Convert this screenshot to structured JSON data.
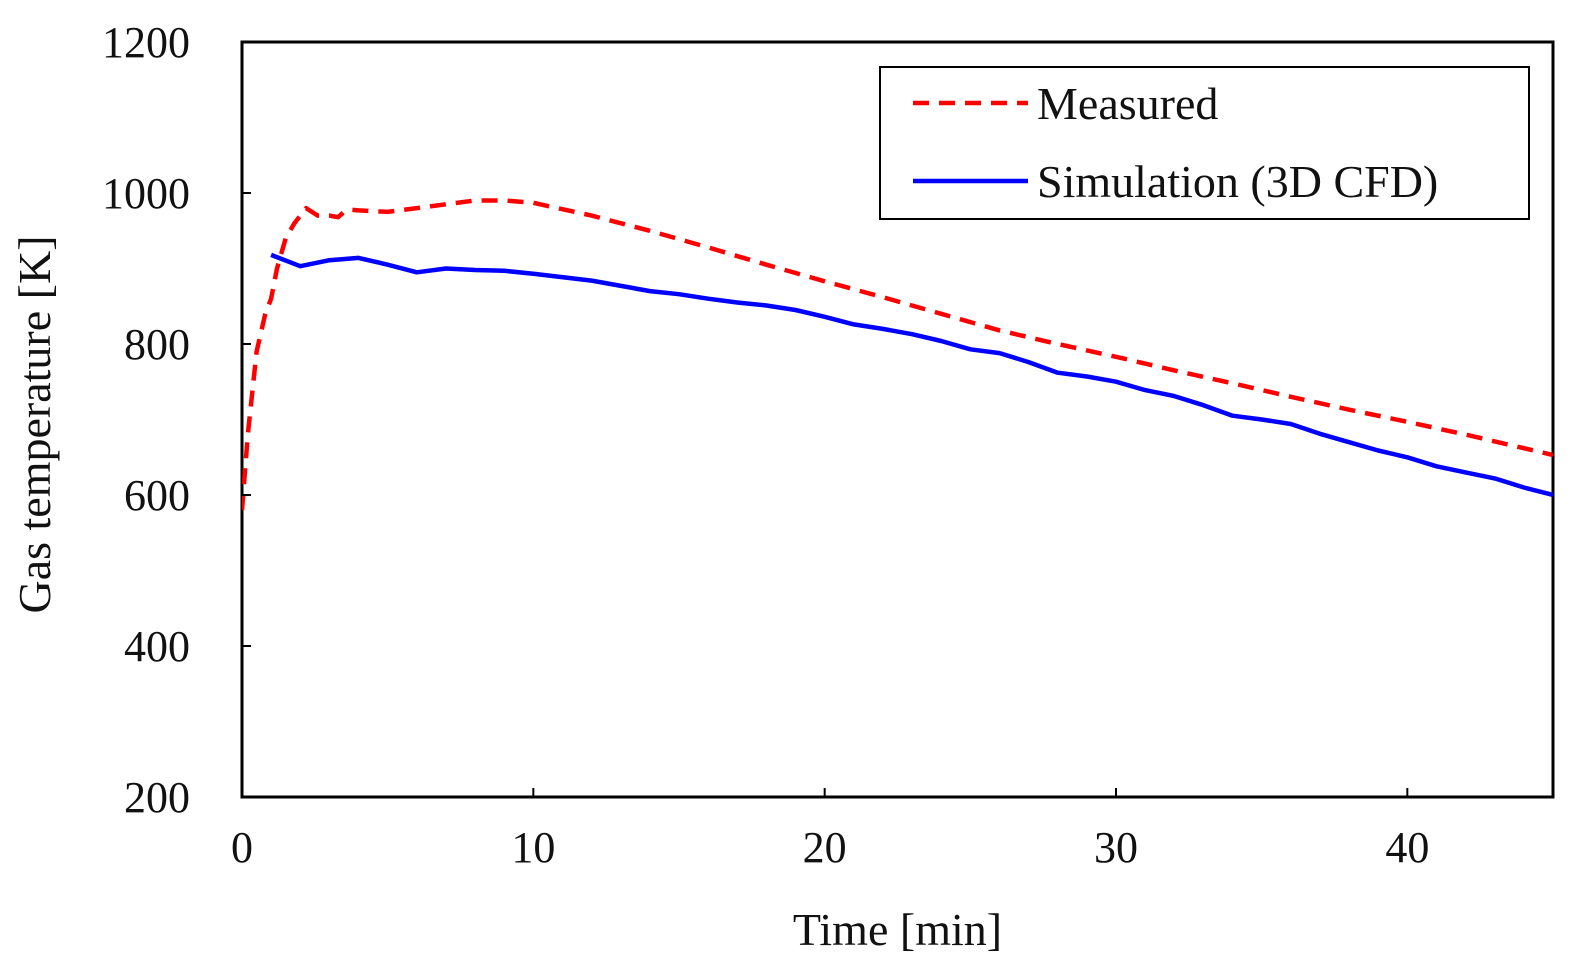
{
  "chart_data": {
    "type": "line",
    "title": "",
    "xlabel": "Time [min]",
    "ylabel": "Gas temperature [K]",
    "xlim": [
      0,
      45
    ],
    "ylim": [
      200,
      1200
    ],
    "xticks": [
      0,
      10,
      20,
      30,
      40
    ],
    "yticks": [
      200,
      400,
      600,
      800,
      1000,
      1200
    ],
    "grid": false,
    "legend_position": "top-right",
    "series": [
      {
        "name": "Measured",
        "color": "#ff0000",
        "style": "dashed",
        "x": [
          0,
          0.2,
          0.5,
          0.8,
          1.0,
          1.2,
          1.5,
          1.8,
          2.0,
          2.2,
          2.4,
          2.6,
          2.8,
          3.0,
          3.3,
          3.5,
          3.7,
          4.0,
          5.0,
          6.0,
          7.0,
          8.0,
          9.0,
          10.0,
          12.0,
          14.0,
          16.0,
          18.0,
          20.0,
          22.0,
          24.0,
          26.0,
          28.0,
          30.0,
          32.0,
          34.0,
          36.0,
          38.0,
          40.0,
          42.0,
          45.0
        ],
        "y": [
          580,
          680,
          790,
          840,
          860,
          900,
          940,
          960,
          970,
          980,
          975,
          970,
          970,
          970,
          968,
          975,
          978,
          977,
          975,
          980,
          985,
          990,
          990,
          987,
          970,
          950,
          928,
          905,
          883,
          862,
          840,
          818,
          800,
          783,
          765,
          748,
          730,
          713,
          697,
          680,
          653
        ]
      },
      {
        "name": "Simulation (3D CFD)",
        "color": "#0000ff",
        "style": "solid",
        "x": [
          1.0,
          2.0,
          3.0,
          4.0,
          5.0,
          6.0,
          7.0,
          8.0,
          9.0,
          10.0,
          12.0,
          14.0,
          15.0,
          16.0,
          17.0,
          18.0,
          19.0,
          20.0,
          21.0,
          22.0,
          23.0,
          24.0,
          25.0,
          26.0,
          27.0,
          28.0,
          29.0,
          30.0,
          31.0,
          32.0,
          33.0,
          34.0,
          35.0,
          36.0,
          37.0,
          38.0,
          39.0,
          40.0,
          41.0,
          42.0,
          43.0,
          44.0,
          45.0
        ],
        "y": [
          918,
          903,
          911,
          914,
          905,
          895,
          900,
          898,
          897,
          893,
          884,
          870,
          866,
          860,
          855,
          851,
          845,
          836,
          826,
          820,
          813,
          804,
          793,
          788,
          776,
          762,
          757,
          750,
          739,
          731,
          719,
          705,
          700,
          694,
          681,
          670,
          659,
          650,
          638,
          630,
          622,
          610,
          600
        ]
      }
    ]
  }
}
